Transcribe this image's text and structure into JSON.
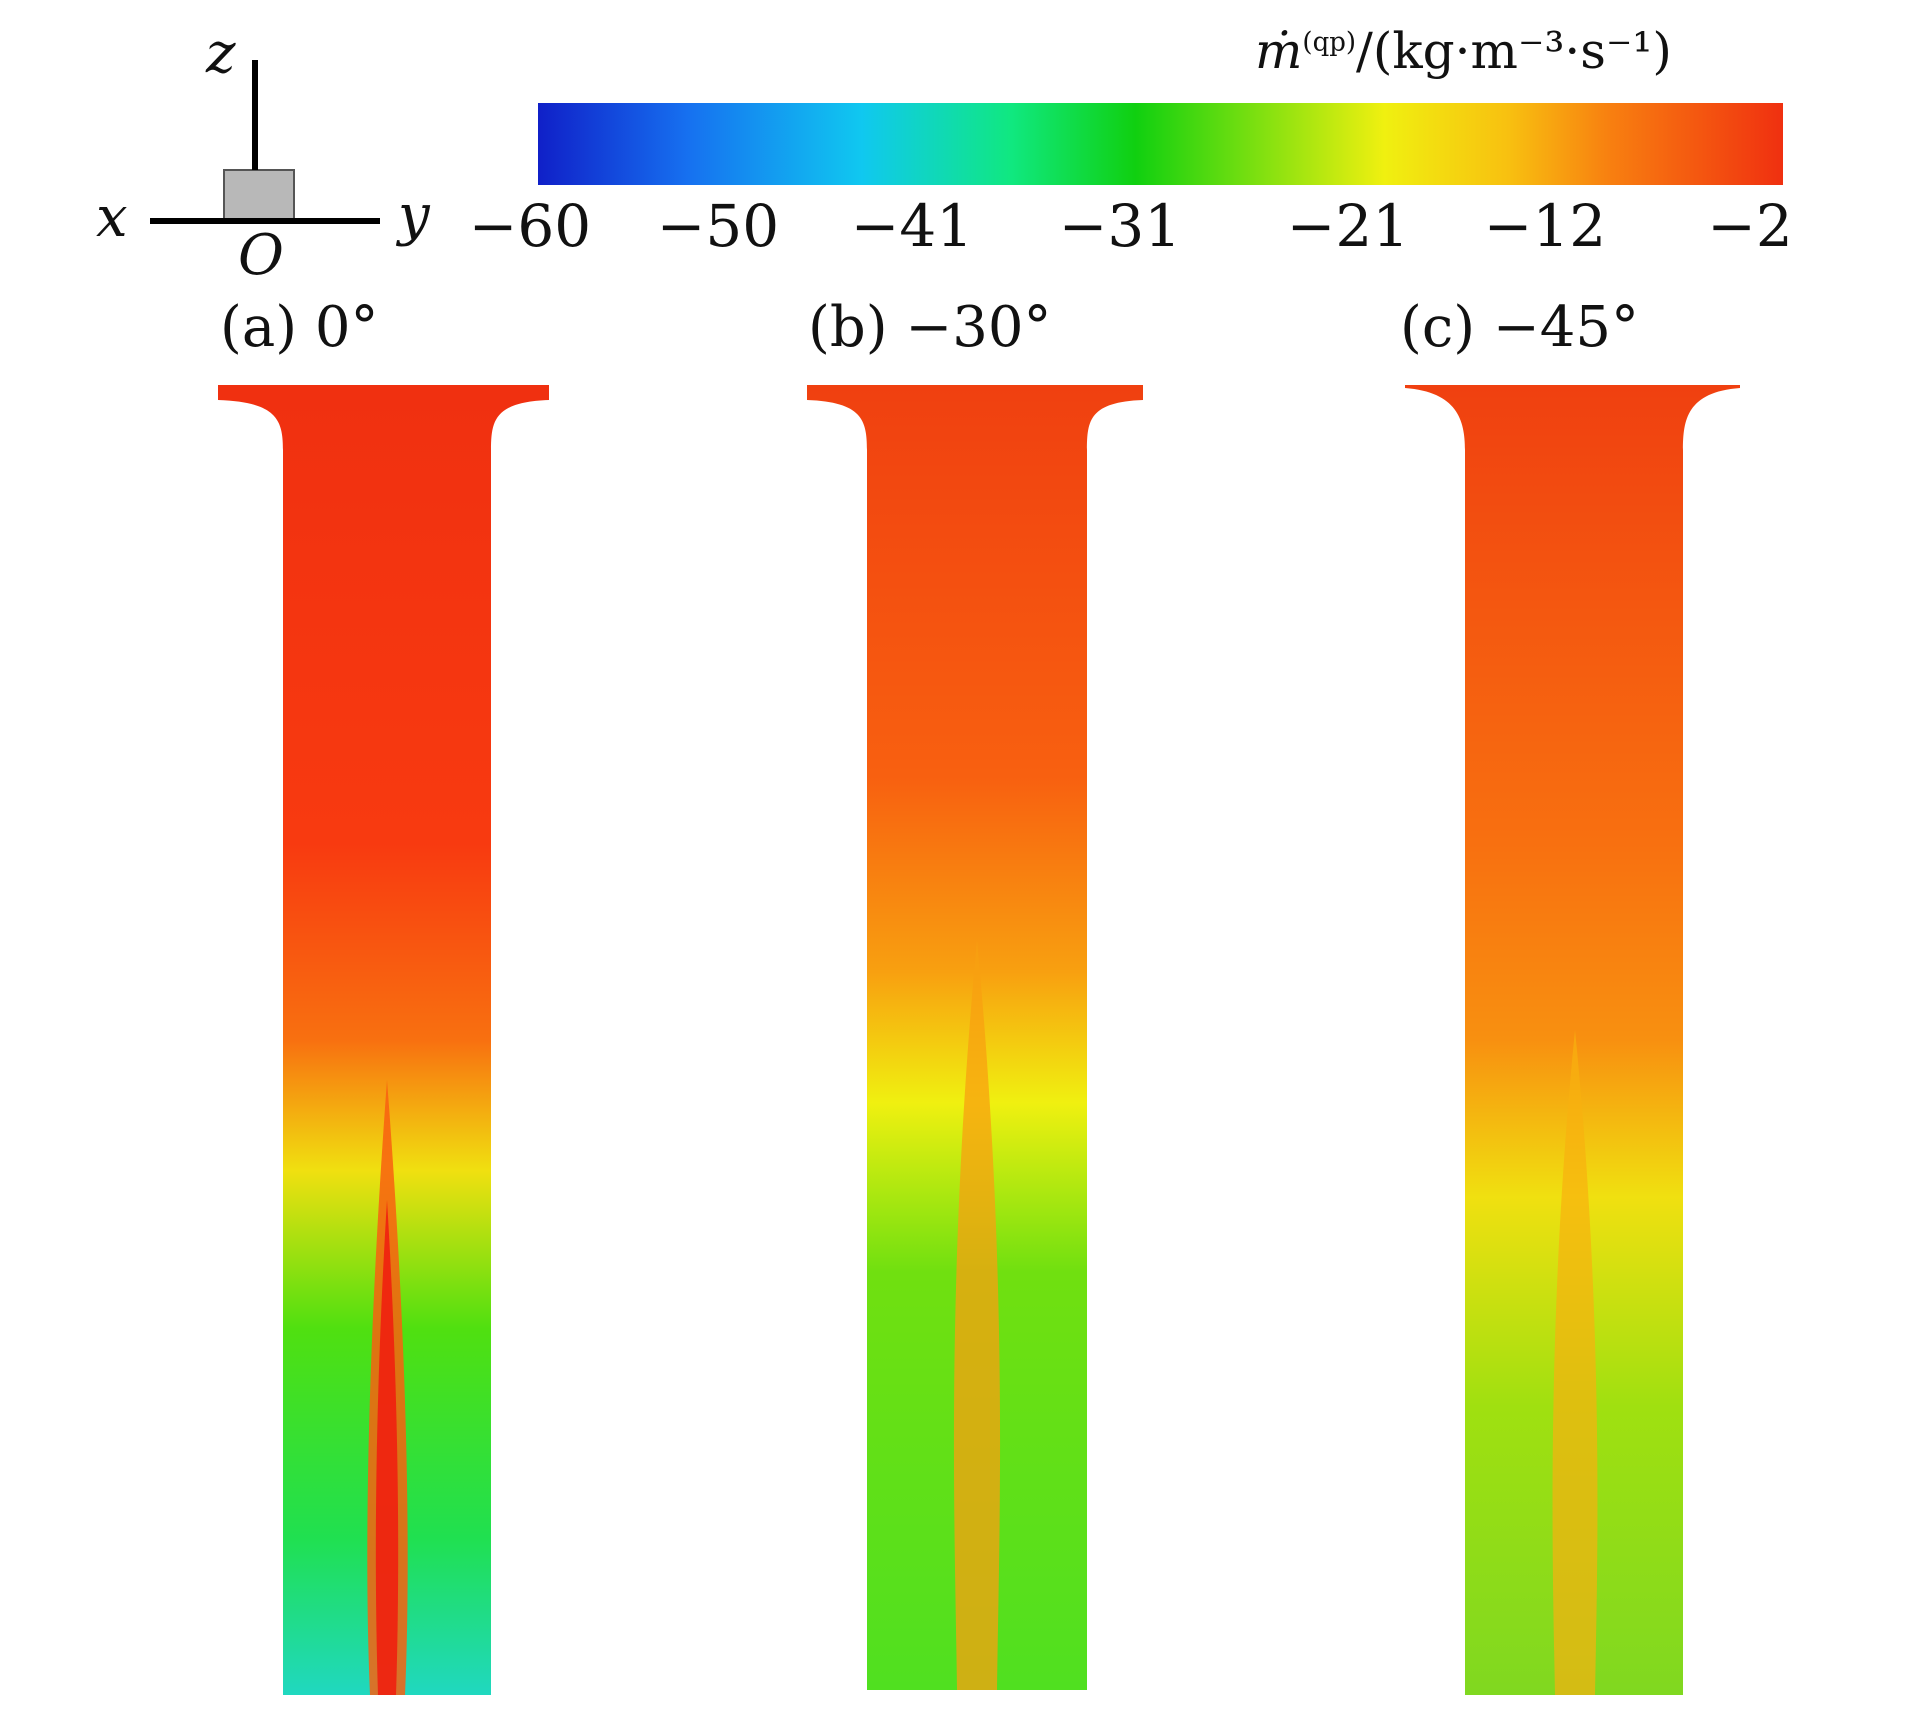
{
  "axes": {
    "z": "z",
    "x": "x",
    "y": "y",
    "origin": "O"
  },
  "colorbar": {
    "title_m": "ṁ",
    "title_sup": "(qp)",
    "title_rest": "/(kg·m⁻³·s⁻¹)",
    "ticks": [
      "−60",
      "−50",
      "−41",
      "−31",
      "−21",
      "−12",
      "−2"
    ],
    "colors": [
      "#1020c8",
      "#10c8f0",
      "#10d010",
      "#f0f010",
      "#f88010",
      "#f03010"
    ]
  },
  "panels": [
    {
      "label": "(a) 0°"
    },
    {
      "label": "(b) −30°"
    },
    {
      "label": "(c) −45°"
    }
  ]
}
